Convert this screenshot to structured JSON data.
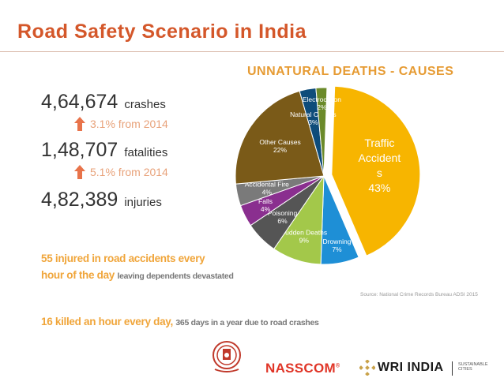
{
  "title": "Road Safety Scenario in India",
  "stats": [
    {
      "value": "4,64,674",
      "unit": "crashes"
    },
    {
      "value": "1,48,707",
      "unit": "fatalities"
    },
    {
      "value": "4,82,389",
      "unit": "injuries"
    }
  ],
  "deltas": [
    {
      "text": "3.1% from 2014"
    },
    {
      "text": "5.1% from  2014"
    }
  ],
  "injured_line1": "55 injured in road accidents every",
  "injured_line2": "hour of the day",
  "injured_small": "leaving dependents devastated",
  "killed_line": "16 killed an hour every day,",
  "killed_small": "365 days in  a year due to road crashes",
  "chart_data": {
    "type": "pie",
    "title": "UNNATURAL DEATHS - CAUSES",
    "slices": [
      {
        "label": "Traffic Accident s",
        "display": [
          "Traffic",
          "Accident",
          "s"
        ],
        "pct_label": "43%",
        "value": 43,
        "color": "#f7b500",
        "exploded": true
      },
      {
        "label": "Drowning",
        "pct_label": "7%",
        "value": 7,
        "color": "#1e8fd6"
      },
      {
        "label": "Sudden Deaths",
        "pct_label": "9%",
        "value": 9,
        "color": "#a3c84a"
      },
      {
        "label": "Poisoning",
        "pct_label": "6%",
        "value": 6,
        "color": "#555555"
      },
      {
        "label": "Falls",
        "pct_label": "4%",
        "value": 4,
        "color": "#8a2f8f"
      },
      {
        "label": "Accidental Fire",
        "pct_label": "4%",
        "value": 4,
        "color": "#7a7a7a"
      },
      {
        "label": "Other Causes",
        "pct_label": "22%",
        "value": 22,
        "color": "#7a5a18"
      },
      {
        "label": "Natural Causes",
        "pct_label": "3%",
        "value": 3,
        "color": "#0e4c7a"
      },
      {
        "label": "Electrocution",
        "pct_label": "2%",
        "value": 2,
        "color": "#6b8a2a"
      }
    ]
  },
  "source": "Source: National Crime Records Bureau ADSI 2015",
  "logos": {
    "nasscom": "NASSCOM",
    "registered": "®",
    "wri": "WRI INDIA",
    "wri_sub": "SUSTAINABLE CITIES"
  },
  "colors": {
    "title": "#d4572a",
    "orange_text": "#f0a53a",
    "arrow": "#e8734a"
  }
}
